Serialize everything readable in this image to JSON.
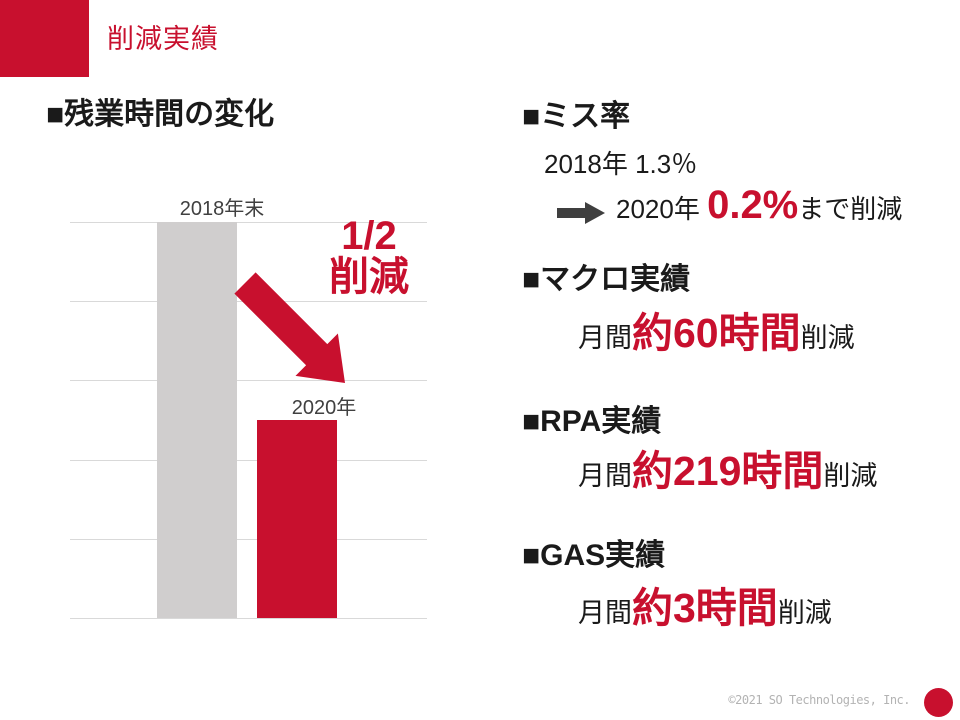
{
  "slide": {
    "title": "削減実績",
    "footer": {
      "copyright": "©2021 SO Technologies, Inc."
    }
  },
  "left_section": {
    "heading": "■残業時間の変化",
    "annotation_line1": "1/2",
    "annotation_line2": "削減"
  },
  "chart_data": {
    "type": "bar",
    "title": "残業時間の変化",
    "categories": [
      "2018年末",
      "2020年"
    ],
    "values": [
      100,
      50
    ],
    "value_unit": "relative index (2018年末 = 100, no numeric axis shown)",
    "series_colors": [
      "#D0CECE",
      "#C8102E"
    ],
    "xlabel": "",
    "ylabel": "",
    "ylim": [
      0,
      100
    ],
    "gridline_step": 20,
    "grid": true,
    "legend": false,
    "annotation": "1/2 削減 (2020年は2018年末の半分)"
  },
  "right_section": {
    "miss_rate": {
      "heading": "■ミス率",
      "line_before": "2018年 1.3％",
      "after_year": "2020年 ",
      "after_value": "0.2%",
      "after_suffix": "まで削減"
    },
    "macro": {
      "heading": "■マクロ実績",
      "prefix": "月間",
      "value": "約60時間",
      "suffix": "削減"
    },
    "rpa": {
      "heading": "■RPA実績",
      "prefix": "月間",
      "value": "約219時間",
      "suffix": "削減"
    },
    "gas": {
      "heading": "■GAS実績",
      "prefix": "月間",
      "value": "約3時間",
      "suffix": "削減"
    }
  },
  "icons": {
    "big_arrow": "down-right-block-arrow",
    "small_arrow": "right-block-arrow"
  },
  "colors": {
    "accent_red": "#C8102E",
    "bar_gray": "#D0CECE",
    "gridline": "#D9D9D9",
    "text_black": "#1A1A1A",
    "label_gray": "#404040",
    "arrow_dark": "#3F3F3F",
    "footer_gray": "#B3B3B3"
  }
}
